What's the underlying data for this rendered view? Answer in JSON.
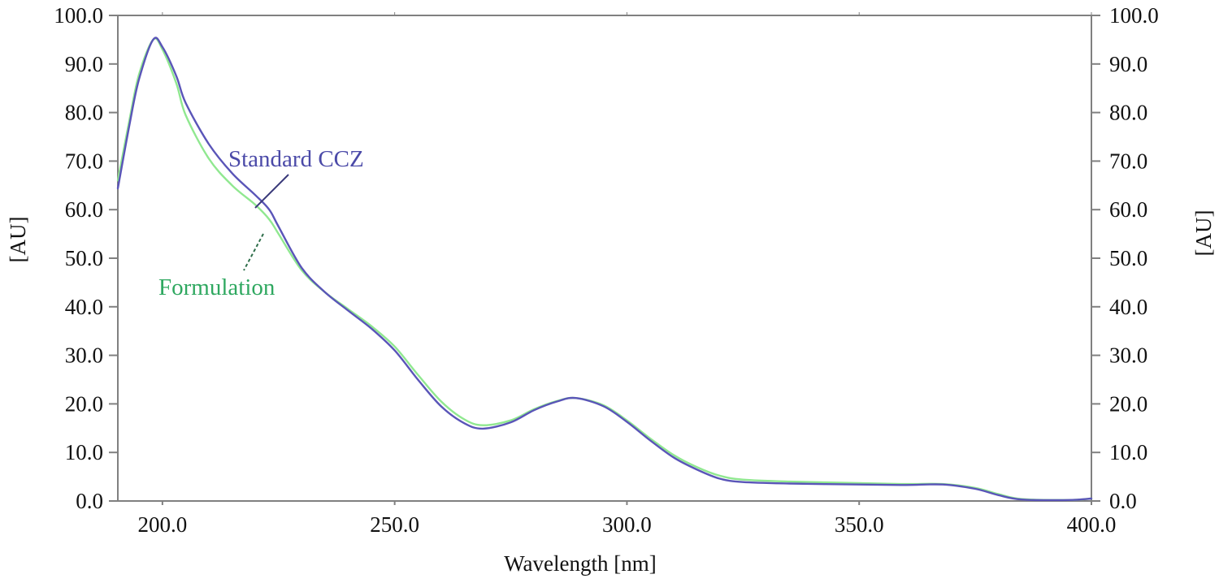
{
  "chart_data": {
    "type": "line",
    "title": "",
    "xlabel": "Wavelength [nm]",
    "ylabel": "[AU]",
    "ylabel_right": "[AU]",
    "xlim": [
      190.4,
      400
    ],
    "ylim": [
      0,
      100
    ],
    "grid": false,
    "legend": "inline annotations with leader lines",
    "x_ticks": [
      200.0,
      250.0,
      300.0,
      350.0,
      400.0
    ],
    "x_tick_labels": [
      "200.0",
      "250.0",
      "300.0",
      "350.0",
      "400.0"
    ],
    "y_ticks": [
      0,
      10,
      20,
      30,
      40,
      50,
      60,
      70,
      80,
      90,
      100
    ],
    "y_tick_labels": [
      "0.0",
      "10.0",
      "20.0",
      "30.0",
      "40.0",
      "50.0",
      "60.0",
      "70.0",
      "80.0",
      "90.0",
      "100.0"
    ],
    "series": [
      {
        "name": "Standard CCZ",
        "color": "#5a55b8",
        "x": [
          190.4,
          193,
          195,
          198,
          200,
          203,
          205,
          210,
          215,
          220,
          223,
          225,
          230,
          235,
          240,
          245,
          250,
          255,
          260,
          265,
          269,
          275,
          280,
          285,
          289,
          295,
          300,
          305,
          310,
          315,
          320,
          325,
          335,
          350,
          360,
          368,
          375,
          380,
          385,
          395,
          400
        ],
        "values": [
          64.4,
          78.0,
          87.0,
          95.0,
          93.5,
          87.5,
          82.0,
          73.5,
          67.5,
          63.0,
          60.0,
          56.5,
          48.0,
          43.0,
          39.2,
          35.5,
          31.0,
          25.0,
          19.5,
          16.0,
          14.9,
          16.2,
          18.7,
          20.5,
          21.2,
          19.5,
          16.3,
          12.5,
          9.0,
          6.5,
          4.6,
          3.9,
          3.6,
          3.4,
          3.3,
          3.4,
          2.5,
          1.2,
          0.3,
          0.2,
          0.5
        ]
      },
      {
        "name": "Formulation",
        "color": "#90e890",
        "x": [
          190.4,
          193,
          195,
          198,
          200,
          203,
          205,
          210,
          215,
          220,
          223,
          225,
          230,
          235,
          240,
          245,
          250,
          255,
          260,
          265,
          269,
          275,
          280,
          285,
          289,
          295,
          300,
          305,
          310,
          315,
          320,
          325,
          335,
          350,
          360,
          368,
          375,
          380,
          385,
          395,
          400
        ],
        "values": [
          66.0,
          79.0,
          88.0,
          95.0,
          93.0,
          86.0,
          79.5,
          70.5,
          65.0,
          61.0,
          58.0,
          55.0,
          47.5,
          43.0,
          39.5,
          36.0,
          31.8,
          26.0,
          20.5,
          16.8,
          15.6,
          16.6,
          18.9,
          20.6,
          21.2,
          19.7,
          16.6,
          12.9,
          9.5,
          7.0,
          5.2,
          4.4,
          4.0,
          3.7,
          3.5,
          3.5,
          2.7,
          1.4,
          0.4,
          0.2,
          0.5
        ]
      }
    ],
    "annotations": [
      {
        "text": "Standard CCZ",
        "color": "#4b4aa8",
        "leader": "solid"
      },
      {
        "text": "Formulation",
        "color": "#2fa860",
        "leader": "dashed"
      }
    ]
  },
  "labels": {
    "xlabel": "Wavelength [nm]",
    "ylabel_left": "[AU]",
    "ylabel_right": "[AU]",
    "anno_standard": "Standard CCZ",
    "anno_formulation": "Formulation"
  }
}
